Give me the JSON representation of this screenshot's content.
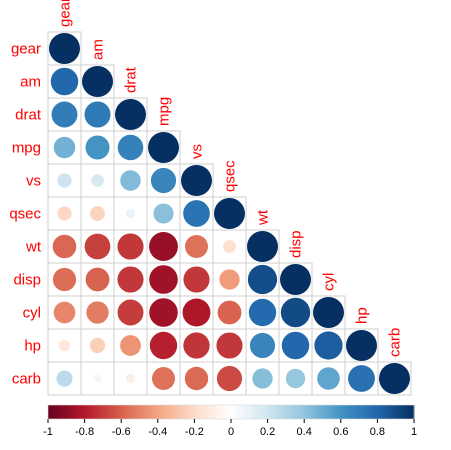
{
  "chart_data": {
    "type": "heatmap",
    "variables": [
      "gear",
      "am",
      "drat",
      "mpg",
      "vs",
      "qsec",
      "wt",
      "disp",
      "cyl",
      "hp",
      "carb"
    ],
    "matrix": [
      [
        1.0,
        0.79,
        0.7,
        0.48,
        0.21,
        -0.21,
        -0.58,
        -0.56,
        -0.49,
        -0.13,
        0.27
      ],
      [
        0.79,
        1.0,
        0.71,
        0.6,
        0.17,
        -0.23,
        -0.69,
        -0.59,
        -0.52,
        -0.24,
        0.06
      ],
      [
        0.7,
        0.71,
        1.0,
        0.68,
        0.44,
        0.09,
        -0.71,
        -0.71,
        -0.7,
        -0.45,
        -0.09
      ],
      [
        0.48,
        0.6,
        0.68,
        1.0,
        0.66,
        0.42,
        -0.87,
        -0.85,
        -0.85,
        -0.78,
        -0.55
      ],
      [
        0.21,
        0.17,
        0.44,
        0.66,
        1.0,
        0.74,
        -0.55,
        -0.71,
        -0.81,
        -0.72,
        -0.57
      ],
      [
        -0.21,
        -0.23,
        0.09,
        0.42,
        0.74,
        1.0,
        -0.17,
        -0.43,
        -0.59,
        -0.71,
        -0.66
      ],
      [
        -0.58,
        -0.69,
        -0.71,
        -0.87,
        -0.55,
        -0.17,
        1.0,
        0.89,
        0.78,
        0.66,
        0.43
      ],
      [
        -0.56,
        -0.59,
        -0.71,
        -0.85,
        -0.71,
        -0.43,
        0.89,
        1.0,
        0.9,
        0.79,
        0.39
      ],
      [
        -0.49,
        -0.52,
        -0.7,
        -0.85,
        -0.81,
        -0.59,
        0.78,
        0.9,
        1.0,
        0.83,
        0.53
      ],
      [
        -0.13,
        -0.24,
        -0.45,
        -0.78,
        -0.72,
        -0.71,
        0.66,
        0.79,
        0.83,
        1.0,
        0.75
      ],
      [
        0.27,
        0.06,
        -0.09,
        -0.55,
        -0.57,
        -0.66,
        0.43,
        0.39,
        0.53,
        0.75,
        1.0
      ]
    ],
    "shape": "lower-triangle circles",
    "colorbar": {
      "ticks": [
        "-1",
        "-0.8",
        "-0.6",
        "-0.4",
        "-0.2",
        "0",
        "0.2",
        "0.4",
        "0.6",
        "0.8",
        "1"
      ],
      "range": [
        -1,
        1
      ]
    },
    "palette": [
      "#67001F",
      "#B2182B",
      "#D6604D",
      "#F4A582",
      "#FDDBC7",
      "#FFFFFF",
      "#D1E5F0",
      "#92C5DE",
      "#4393C3",
      "#2166AC",
      "#053061"
    ],
    "label_color": "#FF0000"
  }
}
